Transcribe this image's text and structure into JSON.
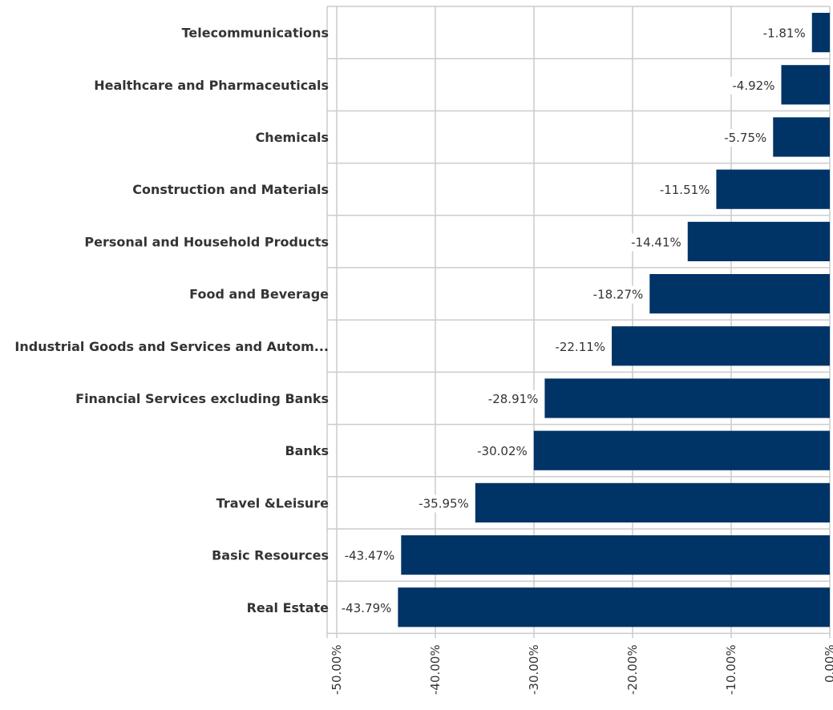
{
  "chart_data": {
    "type": "bar",
    "orientation": "horizontal",
    "categories": [
      "Telecommunications",
      "Healthcare and Pharmaceuticals",
      "Chemicals",
      "Construction and Materials",
      "Personal and Household Products",
      "Food and Beverage",
      "Industrial Goods and Services and Autom...",
      "Financial Services excluding Banks",
      "Banks",
      "Travel &Leisure",
      "Basic Resources",
      "Real Estate"
    ],
    "values": [
      -1.81,
      -4.92,
      -5.75,
      -11.51,
      -14.41,
      -18.27,
      -22.11,
      -28.91,
      -30.02,
      -35.95,
      -43.47,
      -43.79
    ],
    "value_labels": [
      "-1.81%",
      "-4.92%",
      "-5.75%",
      "-11.51%",
      "-14.41%",
      "-18.27%",
      "-22.11%",
      "-28.91%",
      "-30.02%",
      "-35.95%",
      "-43.47%",
      "-43.79%"
    ],
    "xlim": [
      -50,
      0
    ],
    "xticks": [
      -50,
      -40,
      -30,
      -20,
      -10,
      0
    ],
    "xtick_labels": [
      "-50.00%",
      "-40.00%",
      "-30.00%",
      "-20.00%",
      "-10.00%",
      "0.00%"
    ],
    "title": "",
    "xlabel": "",
    "ylabel": "",
    "grid": true,
    "legend": "none",
    "bar_color": "#003366"
  }
}
